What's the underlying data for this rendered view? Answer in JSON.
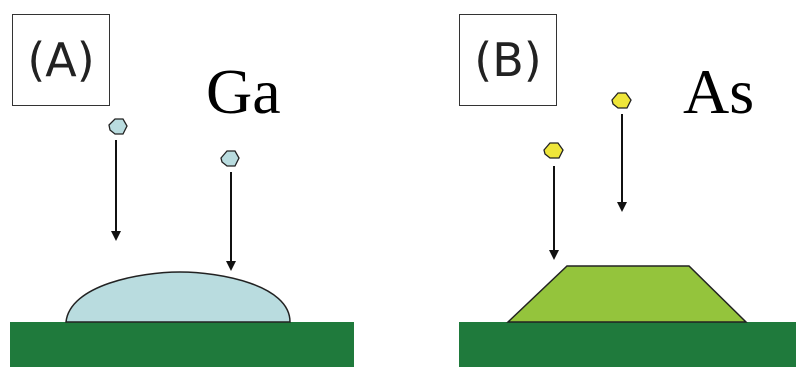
{
  "panels": [
    {
      "label": "(A)",
      "species": "Ga",
      "substrate_color": "#1f7a3c",
      "deposit_color": "#b9dcdf",
      "atom_color": "#b9dcdf",
      "deposit_shape": "droplet",
      "atom_count": 2
    },
    {
      "label": "(B)",
      "species": "As",
      "substrate_color": "#1f7a3c",
      "deposit_color": "#94c43c",
      "atom_color": "#efe63a",
      "deposit_shape": "trapezoid",
      "atom_count": 2
    }
  ]
}
